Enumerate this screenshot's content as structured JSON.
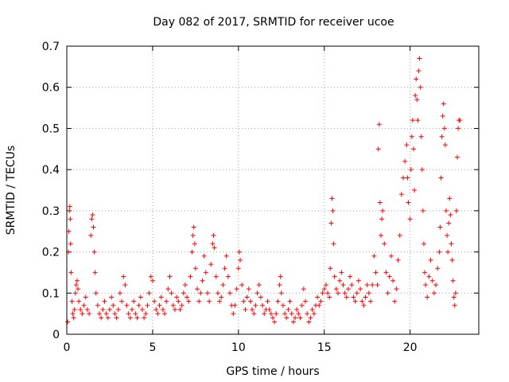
{
  "chart_data": {
    "type": "scatter",
    "title": "Day 082 of 2017, SRMTID for receiver ucoe",
    "xlabel": "GPS time / hours",
    "ylabel": "SRMTID / TECUs",
    "xlim": [
      0,
      24
    ],
    "ylim": [
      0,
      0.7
    ],
    "xticks": [
      "0",
      "5",
      "10",
      "15",
      "20"
    ],
    "yticks": [
      "0",
      "0.1",
      "0.2",
      "0.3",
      "0.4",
      "0.5",
      "0.6",
      "0.7"
    ],
    "grid": true,
    "marker": "+",
    "color": "#ff0000",
    "series": [
      {
        "name": "SRMTID",
        "points": [
          [
            0.05,
            0.03
          ],
          [
            0.1,
            0.2
          ],
          [
            0.12,
            0.25
          ],
          [
            0.15,
            0.3
          ],
          [
            0.18,
            0.31
          ],
          [
            0.2,
            0.28
          ],
          [
            0.22,
            0.22
          ],
          [
            0.25,
            0.15
          ],
          [
            0.3,
            0.08
          ],
          [
            0.35,
            0.05
          ],
          [
            0.4,
            0.04
          ],
          [
            0.45,
            0.06
          ],
          [
            0.5,
            0.1
          ],
          [
            0.55,
            0.12
          ],
          [
            0.6,
            0.13
          ],
          [
            0.65,
            0.11
          ],
          [
            0.7,
            0.08
          ],
          [
            0.8,
            0.06
          ],
          [
            0.9,
            0.05
          ],
          [
            1.0,
            0.07
          ],
          [
            1.1,
            0.09
          ],
          [
            1.2,
            0.06
          ],
          [
            1.3,
            0.05
          ],
          [
            1.4,
            0.24
          ],
          [
            1.45,
            0.28
          ],
          [
            1.5,
            0.29
          ],
          [
            1.55,
            0.26
          ],
          [
            1.6,
            0.2
          ],
          [
            1.65,
            0.15
          ],
          [
            1.7,
            0.1
          ],
          [
            1.8,
            0.07
          ],
          [
            1.9,
            0.05
          ],
          [
            2.0,
            0.04
          ],
          [
            2.1,
            0.06
          ],
          [
            2.2,
            0.08
          ],
          [
            2.3,
            0.05
          ],
          [
            2.4,
            0.04
          ],
          [
            2.5,
            0.06
          ],
          [
            2.6,
            0.09
          ],
          [
            2.7,
            0.07
          ],
          [
            2.8,
            0.05
          ],
          [
            2.9,
            0.04
          ],
          [
            3.0,
            0.06
          ],
          [
            3.1,
            0.1
          ],
          [
            3.2,
            0.08
          ],
          [
            3.3,
            0.14
          ],
          [
            3.4,
            0.12
          ],
          [
            3.5,
            0.07
          ],
          [
            3.6,
            0.05
          ],
          [
            3.7,
            0.04
          ],
          [
            3.8,
            0.06
          ],
          [
            3.9,
            0.08
          ],
          [
            4.0,
            0.05
          ],
          [
            4.1,
            0.04
          ],
          [
            4.2,
            0.07
          ],
          [
            4.3,
            0.09
          ],
          [
            4.4,
            0.06
          ],
          [
            4.5,
            0.04
          ],
          [
            4.6,
            0.05
          ],
          [
            4.7,
            0.07
          ],
          [
            4.8,
            0.1
          ],
          [
            4.9,
            0.14
          ],
          [
            5.0,
            0.13
          ],
          [
            5.1,
            0.08
          ],
          [
            5.2,
            0.06
          ],
          [
            5.3,
            0.05
          ],
          [
            5.4,
            0.07
          ],
          [
            5.5,
            0.09
          ],
          [
            5.6,
            0.06
          ],
          [
            5.7,
            0.05
          ],
          [
            5.8,
            0.08
          ],
          [
            5.9,
            0.11
          ],
          [
            6.0,
            0.14
          ],
          [
            6.1,
            0.1
          ],
          [
            6.2,
            0.07
          ],
          [
            6.3,
            0.06
          ],
          [
            6.4,
            0.09
          ],
          [
            6.5,
            0.08
          ],
          [
            6.6,
            0.06
          ],
          [
            6.7,
            0.07
          ],
          [
            6.8,
            0.1
          ],
          [
            6.9,
            0.12
          ],
          [
            7.0,
            0.09
          ],
          [
            7.1,
            0.08
          ],
          [
            7.2,
            0.14
          ],
          [
            7.3,
            0.2
          ],
          [
            7.35,
            0.24
          ],
          [
            7.4,
            0.26
          ],
          [
            7.45,
            0.22
          ],
          [
            7.5,
            0.16
          ],
          [
            7.6,
            0.11
          ],
          [
            7.7,
            0.08
          ],
          [
            7.8,
            0.1
          ],
          [
            7.9,
            0.13
          ],
          [
            8.0,
            0.19
          ],
          [
            8.1,
            0.15
          ],
          [
            8.2,
            0.1
          ],
          [
            8.3,
            0.08
          ],
          [
            8.4,
            0.17
          ],
          [
            8.5,
            0.22
          ],
          [
            8.55,
            0.24
          ],
          [
            8.6,
            0.21
          ],
          [
            8.7,
            0.14
          ],
          [
            8.8,
            0.1
          ],
          [
            8.9,
            0.08
          ],
          [
            9.0,
            0.09
          ],
          [
            9.1,
            0.12
          ],
          [
            9.2,
            0.16
          ],
          [
            9.3,
            0.19
          ],
          [
            9.4,
            0.14
          ],
          [
            9.5,
            0.1
          ],
          [
            9.6,
            0.07
          ],
          [
            9.7,
            0.05
          ],
          [
            9.8,
            0.07
          ],
          [
            9.9,
            0.11
          ],
          [
            10.0,
            0.16
          ],
          [
            10.05,
            0.2
          ],
          [
            10.1,
            0.18
          ],
          [
            10.2,
            0.12
          ],
          [
            10.3,
            0.08
          ],
          [
            10.4,
            0.06
          ],
          [
            10.5,
            0.09
          ],
          [
            10.6,
            0.11
          ],
          [
            10.7,
            0.08
          ],
          [
            10.8,
            0.06
          ],
          [
            10.9,
            0.05
          ],
          [
            11.0,
            0.07
          ],
          [
            11.1,
            0.1
          ],
          [
            11.2,
            0.12
          ],
          [
            11.3,
            0.09
          ],
          [
            11.4,
            0.07
          ],
          [
            11.5,
            0.05
          ],
          [
            11.6,
            0.06
          ],
          [
            11.7,
            0.08
          ],
          [
            11.8,
            0.06
          ],
          [
            11.9,
            0.05
          ],
          [
            12.0,
            0.04
          ],
          [
            12.1,
            0.03
          ],
          [
            12.2,
            0.05
          ],
          [
            12.3,
            0.08
          ],
          [
            12.4,
            0.12
          ],
          [
            12.45,
            0.14
          ],
          [
            12.5,
            0.1
          ],
          [
            12.6,
            0.07
          ],
          [
            12.7,
            0.05
          ],
          [
            12.8,
            0.04
          ],
          [
            12.9,
            0.06
          ],
          [
            13.0,
            0.08
          ],
          [
            13.1,
            0.05
          ],
          [
            13.2,
            0.03
          ],
          [
            13.3,
            0.04
          ],
          [
            13.4,
            0.06
          ],
          [
            13.5,
            0.05
          ],
          [
            13.6,
            0.04
          ],
          [
            13.7,
            0.07
          ],
          [
            13.8,
            0.11
          ],
          [
            13.9,
            0.08
          ],
          [
            14.0,
            0.05
          ],
          [
            14.1,
            0.03
          ],
          [
            14.2,
            0.04
          ],
          [
            14.3,
            0.06
          ],
          [
            14.4,
            0.05
          ],
          [
            14.5,
            0.07
          ],
          [
            14.6,
            0.09
          ],
          [
            14.7,
            0.07
          ],
          [
            14.8,
            0.08
          ],
          [
            14.9,
            0.1
          ],
          [
            15.0,
            0.11
          ],
          [
            15.1,
            0.12
          ],
          [
            15.2,
            0.1
          ],
          [
            15.3,
            0.09
          ],
          [
            15.35,
            0.16
          ],
          [
            15.4,
            0.27
          ],
          [
            15.45,
            0.33
          ],
          [
            15.5,
            0.3
          ],
          [
            15.55,
            0.22
          ],
          [
            15.6,
            0.14
          ],
          [
            15.7,
            0.11
          ],
          [
            15.8,
            0.1
          ],
          [
            15.9,
            0.13
          ],
          [
            16.0,
            0.15
          ],
          [
            16.1,
            0.12
          ],
          [
            16.2,
            0.1
          ],
          [
            16.3,
            0.09
          ],
          [
            16.4,
            0.11
          ],
          [
            16.5,
            0.14
          ],
          [
            16.6,
            0.12
          ],
          [
            16.7,
            0.09
          ],
          [
            16.8,
            0.08
          ],
          [
            16.9,
            0.1
          ],
          [
            17.0,
            0.13
          ],
          [
            17.1,
            0.11
          ],
          [
            17.2,
            0.08
          ],
          [
            17.3,
            0.07
          ],
          [
            17.4,
            0.09
          ],
          [
            17.5,
            0.12
          ],
          [
            17.6,
            0.1
          ],
          [
            17.7,
            0.08
          ],
          [
            17.8,
            0.12
          ],
          [
            17.9,
            0.19
          ],
          [
            18.0,
            0.15
          ],
          [
            18.1,
            0.12
          ],
          [
            18.15,
            0.45
          ],
          [
            18.2,
            0.51
          ],
          [
            18.25,
            0.32
          ],
          [
            18.3,
            0.24
          ],
          [
            18.35,
            0.28
          ],
          [
            18.4,
            0.3
          ],
          [
            18.5,
            0.22
          ],
          [
            18.6,
            0.15
          ],
          [
            18.7,
            0.1
          ],
          [
            18.8,
            0.14
          ],
          [
            18.9,
            0.19
          ],
          [
            19.0,
            0.13
          ],
          [
            19.1,
            0.08
          ],
          [
            19.2,
            0.11
          ],
          [
            19.3,
            0.18
          ],
          [
            19.4,
            0.24
          ],
          [
            19.5,
            0.34
          ],
          [
            19.6,
            0.38
          ],
          [
            19.7,
            0.42
          ],
          [
            19.8,
            0.46
          ],
          [
            19.85,
            0.38
          ],
          [
            19.9,
            0.32
          ],
          [
            20.0,
            0.28
          ],
          [
            20.05,
            0.4
          ],
          [
            20.1,
            0.48
          ],
          [
            20.15,
            0.52
          ],
          [
            20.2,
            0.45
          ],
          [
            20.25,
            0.35
          ],
          [
            20.3,
            0.58
          ],
          [
            20.35,
            0.62
          ],
          [
            20.4,
            0.57
          ],
          [
            20.45,
            0.52
          ],
          [
            20.5,
            0.64
          ],
          [
            20.55,
            0.67
          ],
          [
            20.6,
            0.6
          ],
          [
            20.65,
            0.48
          ],
          [
            20.7,
            0.4
          ],
          [
            20.75,
            0.3
          ],
          [
            20.8,
            0.22
          ],
          [
            20.85,
            0.15
          ],
          [
            20.9,
            0.12
          ],
          [
            21.0,
            0.09
          ],
          [
            21.1,
            0.14
          ],
          [
            21.2,
            0.18
          ],
          [
            21.3,
            0.13
          ],
          [
            21.4,
            0.1
          ],
          [
            21.5,
            0.12
          ],
          [
            21.6,
            0.16
          ],
          [
            21.7,
            0.2
          ],
          [
            21.75,
            0.26
          ],
          [
            21.8,
            0.38
          ],
          [
            21.85,
            0.48
          ],
          [
            21.9,
            0.53
          ],
          [
            21.95,
            0.56
          ],
          [
            22.0,
            0.5
          ],
          [
            22.05,
            0.46
          ],
          [
            22.1,
            0.3
          ],
          [
            22.15,
            0.24
          ],
          [
            22.2,
            0.2
          ],
          [
            22.25,
            0.27
          ],
          [
            22.3,
            0.33
          ],
          [
            22.35,
            0.29
          ],
          [
            22.4,
            0.22
          ],
          [
            22.45,
            0.18
          ],
          [
            22.5,
            0.13
          ],
          [
            22.55,
            0.09
          ],
          [
            22.6,
            0.07
          ],
          [
            22.65,
            0.1
          ],
          [
            22.7,
            0.3
          ],
          [
            22.75,
            0.43
          ],
          [
            22.8,
            0.5
          ],
          [
            22.85,
            0.52
          ],
          [
            22.9,
            0.52
          ]
        ]
      }
    ]
  }
}
